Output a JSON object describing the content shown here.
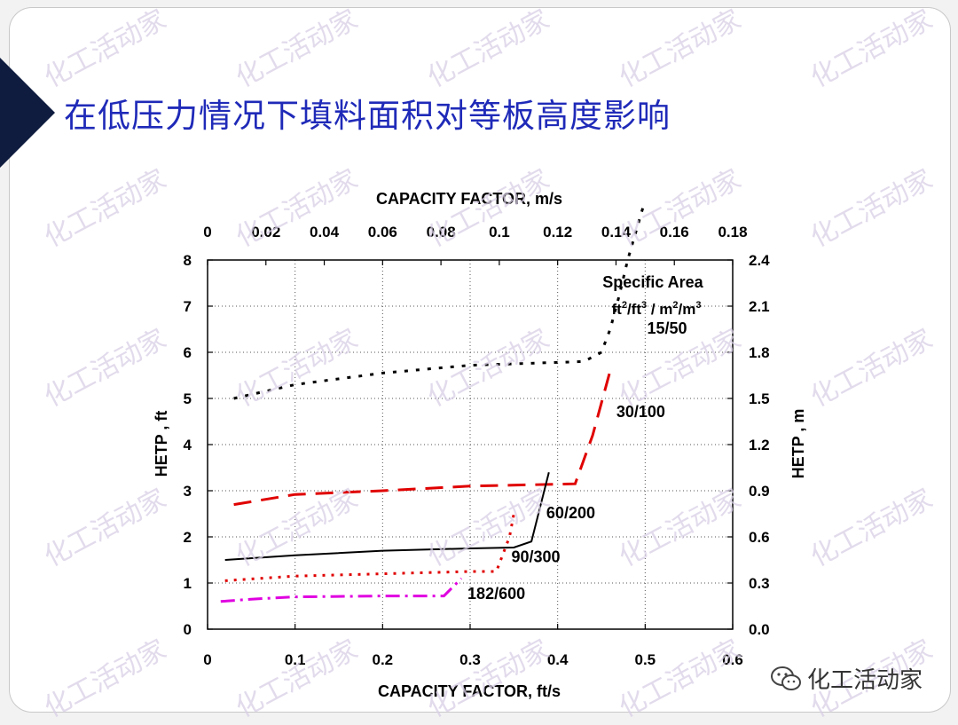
{
  "slide": {
    "title": "在低压力情况下填料面积对等板高度影响",
    "watermark_text": "化工活动家",
    "brand_text": "化工活动家",
    "accent_color": "#0f1c3f",
    "title_color": "#1f2ab8"
  },
  "chart_data": {
    "type": "line",
    "x_bottom": {
      "label": "CAPACITY FACTOR, ft/s",
      "range": [
        0,
        0.6
      ],
      "ticks": [
        "0",
        "0.1",
        "0.2",
        "0.3",
        "0.4",
        "0.5",
        "0.6"
      ]
    },
    "x_top": {
      "label": "CAPACITY FACTOR, m/s",
      "range": [
        0,
        0.18
      ],
      "ticks": [
        "0",
        "0.02",
        "0.04",
        "0.06",
        "0.08",
        "0.1",
        "0.12",
        "0.14",
        "0.16",
        "0.18"
      ]
    },
    "y_left": {
      "label": "HETP , ft",
      "range": [
        0,
        8
      ],
      "ticks": [
        "0",
        "1",
        "2",
        "3",
        "4",
        "5",
        "6",
        "7",
        "8"
      ]
    },
    "y_right": {
      "label": "HETP , m",
      "range": [
        0,
        2.4
      ],
      "ticks": [
        "0.0",
        "0.3",
        "0.6",
        "0.9",
        "1.2",
        "1.5",
        "1.8",
        "2.1",
        "2.4"
      ]
    },
    "grid": true,
    "legend_title": "Specific Area",
    "legend_units": {
      "a": "ft",
      "b": "2",
      "c": "/ft",
      "d": "3",
      "e": " / m",
      "f": "2",
      "g": "/m",
      "h": "3"
    },
    "series": [
      {
        "name": "15/50",
        "color": "#000000",
        "dash": "4,9",
        "width": 3,
        "x": [
          0.03,
          0.1,
          0.2,
          0.3,
          0.43,
          0.45,
          0.46,
          0.47,
          0.48,
          0.5
        ],
        "y": [
          5.0,
          5.3,
          5.55,
          5.72,
          5.8,
          6.0,
          6.5,
          7.2,
          8.0,
          9.3
        ]
      },
      {
        "name": "30/100",
        "color": "#e00000",
        "dash": "20,11",
        "width": 3,
        "x": [
          0.03,
          0.1,
          0.2,
          0.3,
          0.42,
          0.44,
          0.46
        ],
        "y": [
          2.7,
          2.92,
          3.0,
          3.1,
          3.15,
          4.2,
          5.6
        ]
      },
      {
        "name": "60/200",
        "color": "#000000",
        "dash": "",
        "width": 2,
        "x": [
          0.02,
          0.1,
          0.2,
          0.3,
          0.35,
          0.37,
          0.39
        ],
        "y": [
          1.5,
          1.6,
          1.7,
          1.75,
          1.77,
          1.9,
          3.4
        ]
      },
      {
        "name": "90/300",
        "color": "#e00000",
        "dash": "3,7",
        "width": 3,
        "x": [
          0.02,
          0.1,
          0.2,
          0.3,
          0.33,
          0.345,
          0.35
        ],
        "y": [
          1.05,
          1.15,
          1.2,
          1.25,
          1.25,
          2.0,
          2.5
        ]
      },
      {
        "name": "182/600",
        "color": "#e000e0",
        "dash": "16,6,3,6",
        "width": 3,
        "x": [
          0.015,
          0.05,
          0.1,
          0.2,
          0.27,
          0.29
        ],
        "y": [
          0.6,
          0.65,
          0.7,
          0.72,
          0.72,
          1.1
        ]
      }
    ],
    "annotations": [
      {
        "text": "15/50",
        "x": 0.525,
        "y": 6.4
      },
      {
        "text": "30/100",
        "x": 0.495,
        "y": 4.6
      },
      {
        "text": "60/200",
        "x": 0.415,
        "y": 2.4
      },
      {
        "text": "90/300",
        "x": 0.375,
        "y": 1.45
      },
      {
        "text": "182/600",
        "x": 0.33,
        "y": 0.65
      }
    ]
  }
}
